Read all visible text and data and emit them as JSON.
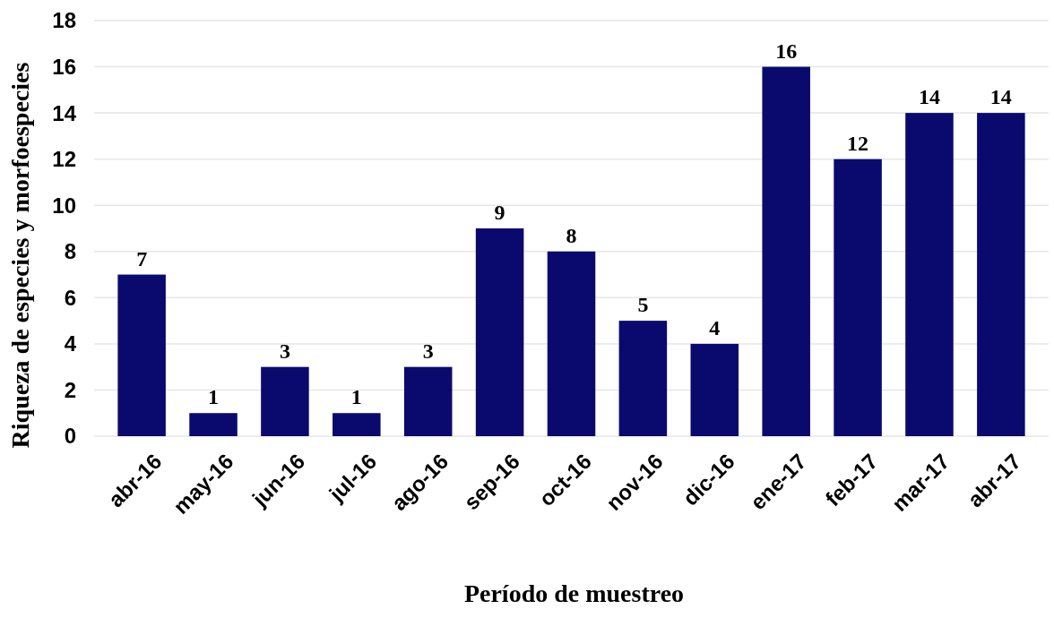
{
  "chart_data": {
    "type": "bar",
    "xlabel": "Período de muestreo",
    "ylabel": "Riqueza de especies y morfoespecies",
    "categories": [
      "abr-16",
      "may-16",
      "jun-16",
      "jul-16",
      "ago-16",
      "sep-16",
      "oct-16",
      "nov-16",
      "dic-16",
      "ene-17",
      "feb-17",
      "mar-17",
      "abr-17"
    ],
    "values": [
      7,
      1,
      3,
      1,
      3,
      9,
      8,
      5,
      4,
      16,
      12,
      14,
      14
    ],
    "color": "#0a0a6e",
    "ylim": [
      0,
      18
    ],
    "yticks": [
      0,
      2,
      4,
      6,
      8,
      10,
      12,
      14,
      16,
      18
    ],
    "grid": "y",
    "data_labels": true
  }
}
